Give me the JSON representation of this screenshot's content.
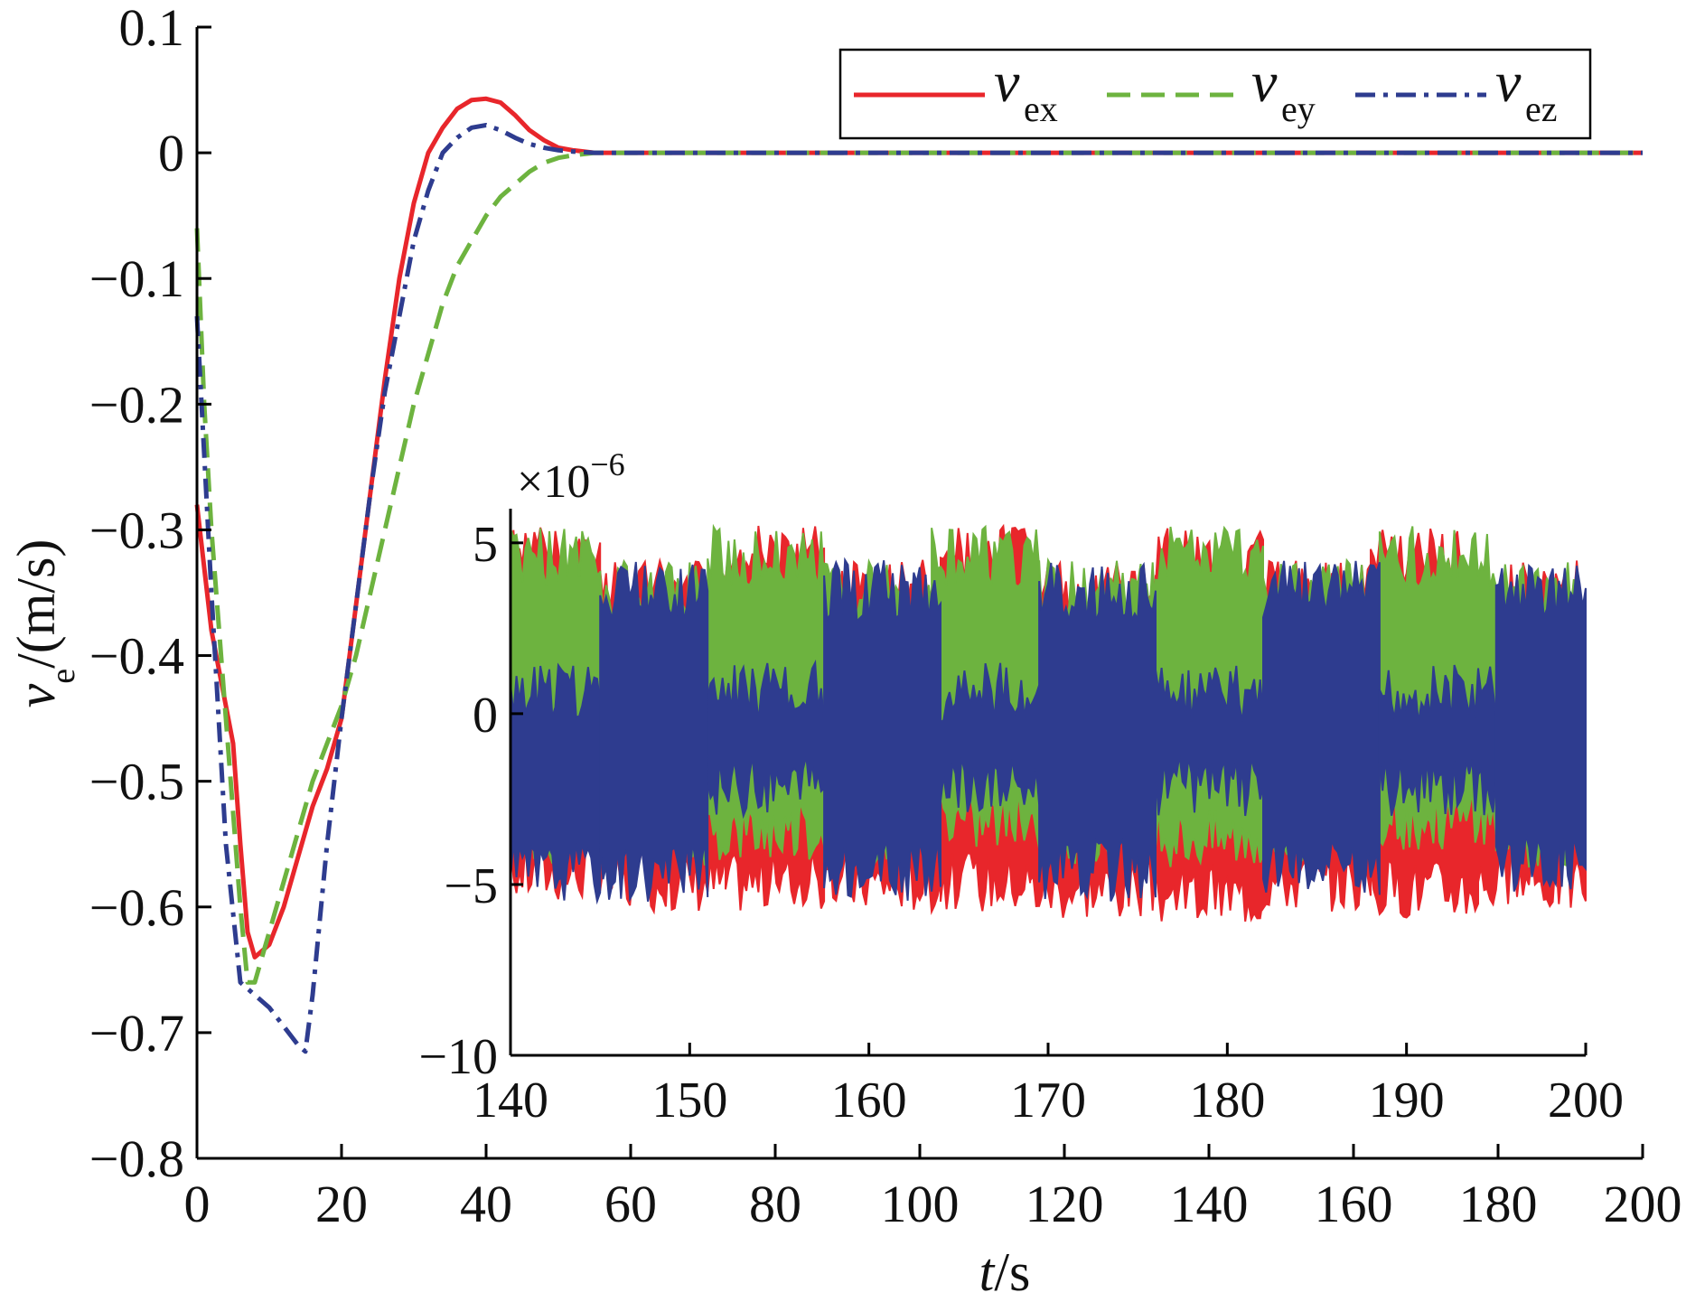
{
  "chart_data": [
    {
      "type": "line",
      "panel": "main",
      "xlabel_var": "t",
      "xlabel_unit": "/s",
      "ylabel_var": "v",
      "ylabel_sub": "e",
      "ylabel_unit": "/(m/s)",
      "xlim": [
        0,
        200
      ],
      "ylim": [
        -0.8,
        0.1
      ],
      "xticks": [
        0,
        20,
        40,
        60,
        80,
        100,
        120,
        140,
        160,
        180,
        200
      ],
      "yticks": [
        0.1,
        0,
        -0.1,
        -0.2,
        -0.3,
        -0.4,
        -0.5,
        -0.6,
        -0.7,
        -0.8
      ],
      "xtick_labels": [
        "0",
        "20",
        "40",
        "60",
        "80",
        "100",
        "120",
        "140",
        "160",
        "180",
        "200"
      ],
      "ytick_labels": [
        "0.1",
        "0",
        "−0.1",
        "−0.2",
        "−0.3",
        "−0.4",
        "−0.5",
        "−0.6",
        "−0.7",
        "−0.8"
      ],
      "legend_position": "top-right",
      "grid": false,
      "series": [
        {
          "name": "v",
          "sub": "ex",
          "color": "#e8262b",
          "style": "solid",
          "x": [
            0,
            2,
            4,
            5,
            6,
            7,
            8,
            10,
            12,
            14,
            16,
            18,
            20,
            22,
            24,
            26,
            28,
            30,
            32,
            34,
            36,
            38,
            40,
            42,
            44,
            46,
            48,
            50,
            52,
            55,
            58,
            60,
            80,
            100,
            120,
            140,
            160,
            180,
            200
          ],
          "y": [
            -0.28,
            -0.38,
            -0.44,
            -0.47,
            -0.55,
            -0.62,
            -0.64,
            -0.63,
            -0.6,
            -0.56,
            -0.52,
            -0.49,
            -0.45,
            -0.36,
            -0.27,
            -0.18,
            -0.1,
            -0.04,
            0.0,
            0.02,
            0.035,
            0.042,
            0.043,
            0.04,
            0.03,
            0.018,
            0.01,
            0.004,
            0.002,
            0.0,
            0.0,
            0.0,
            0.0,
            0.0,
            0.0,
            0.0,
            0.0,
            0.0,
            0.0
          ]
        },
        {
          "name": "v",
          "sub": "ey",
          "color": "#6db33f",
          "style": "dashed",
          "x": [
            0,
            1,
            2,
            4,
            6,
            7,
            8,
            10,
            12,
            14,
            16,
            18,
            20,
            22,
            24,
            26,
            28,
            30,
            32,
            34,
            36,
            38,
            40,
            42,
            44,
            46,
            48,
            50,
            52,
            55,
            58,
            60,
            80,
            100,
            120,
            140,
            160,
            180,
            200
          ],
          "y": [
            -0.06,
            -0.2,
            -0.3,
            -0.45,
            -0.6,
            -0.66,
            -0.66,
            -0.62,
            -0.58,
            -0.54,
            -0.5,
            -0.47,
            -0.44,
            -0.4,
            -0.35,
            -0.3,
            -0.25,
            -0.2,
            -0.16,
            -0.12,
            -0.09,
            -0.07,
            -0.05,
            -0.035,
            -0.025,
            -0.015,
            -0.008,
            -0.004,
            -0.002,
            0.0,
            0.0,
            0.0,
            0.0,
            0.0,
            0.0,
            0.0,
            0.0,
            0.0,
            0.0
          ]
        },
        {
          "name": "v",
          "sub": "ez",
          "color": "#2e3c8f",
          "style": "dashdot",
          "x": [
            0,
            2,
            4,
            6,
            8,
            10,
            12,
            14,
            15,
            16,
            18,
            20,
            22,
            24,
            26,
            28,
            30,
            32,
            34,
            36,
            38,
            40,
            42,
            44,
            46,
            48,
            50,
            52,
            55,
            58,
            60,
            80,
            100,
            120,
            140,
            160,
            180,
            200
          ],
          "y": [
            -0.13,
            -0.35,
            -0.55,
            -0.66,
            -0.67,
            -0.68,
            -0.695,
            -0.71,
            -0.715,
            -0.67,
            -0.55,
            -0.45,
            -0.36,
            -0.27,
            -0.19,
            -0.13,
            -0.07,
            -0.03,
            0.0,
            0.012,
            0.02,
            0.022,
            0.018,
            0.012,
            0.007,
            0.004,
            0.002,
            0.001,
            0.0,
            0.0,
            0.0,
            0.0,
            0.0,
            0.0,
            0.0,
            0.0,
            0.0,
            0.0
          ]
        }
      ]
    },
    {
      "type": "line",
      "panel": "inset",
      "xlim": [
        140,
        200
      ],
      "ylim": [
        -10,
        6
      ],
      "xticks": [
        140,
        150,
        160,
        170,
        180,
        190,
        200
      ],
      "yticks": [
        5,
        0,
        -5,
        -10
      ],
      "xtick_labels": [
        "140",
        "150",
        "160",
        "170",
        "180",
        "190",
        "200"
      ],
      "ytick_labels": [
        "5",
        "0",
        "−5",
        "−10"
      ],
      "scale_label": "×10",
      "scale_exponent": "−6",
      "grid": false,
      "series": [
        {
          "name": "v",
          "sub": "ex",
          "color": "#e8262b",
          "segments": [
            {
              "x": [
                140,
                145
              ],
              "upper": 5.5,
              "lower": -5.5
            },
            {
              "x": [
                145,
                152
              ],
              "upper": 4.5,
              "lower": -5.8
            },
            {
              "x": [
                152,
                157.5
              ],
              "upper": 5.5,
              "lower": -5.8
            },
            {
              "x": [
                157.5,
                164
              ],
              "upper": 4.5,
              "lower": -5.8
            },
            {
              "x": [
                164,
                169
              ],
              "upper": 5.5,
              "lower": -5.8
            },
            {
              "x": [
                169,
                176
              ],
              "upper": 4.5,
              "lower": -6.0
            },
            {
              "x": [
                176,
                182
              ],
              "upper": 5.5,
              "lower": -6.2
            },
            {
              "x": [
                182,
                188
              ],
              "upper": 4.5,
              "lower": -5.8
            },
            {
              "x": [
                188,
                194
              ],
              "upper": 5.5,
              "lower": -6.0
            },
            {
              "x": [
                194,
                200
              ],
              "upper": 4.5,
              "lower": -5.8
            }
          ]
        },
        {
          "name": "v",
          "sub": "ey",
          "color": "#6db33f",
          "segments": [
            {
              "x": [
                140,
                145
              ],
              "upper": 5.5,
              "lower": -4.5
            },
            {
              "x": [
                145,
                151
              ],
              "upper": 4.5,
              "lower": -4.5
            },
            {
              "x": [
                151,
                157.5
              ],
              "upper": 5.5,
              "lower": -4.3
            },
            {
              "x": [
                157.5,
                163.5
              ],
              "upper": 4.5,
              "lower": -4.5
            },
            {
              "x": [
                163.5,
                169.5
              ],
              "upper": 5.5,
              "lower": -4.0
            },
            {
              "x": [
                169.5,
                176
              ],
              "upper": 4.5,
              "lower": -4.5
            },
            {
              "x": [
                176,
                182
              ],
              "upper": 5.5,
              "lower": -4.5
            },
            {
              "x": [
                182,
                188.5
              ],
              "upper": 4.5,
              "lower": -4.5
            },
            {
              "x": [
                188.5,
                195
              ],
              "upper": 5.5,
              "lower": -4.0
            },
            {
              "x": [
                195,
                200
              ],
              "upper": 4.5,
              "lower": -4.5
            }
          ]
        },
        {
          "name": "v",
          "sub": "ez",
          "color": "#2e3c8f",
          "segments": [
            {
              "x": [
                140,
                145
              ],
              "upper": 1.5,
              "lower": -5.5
            },
            {
              "x": [
                145,
                151
              ],
              "upper": 4.5,
              "lower": -5.5
            },
            {
              "x": [
                151,
                157.5
              ],
              "upper": 1.5,
              "lower": -3.0
            },
            {
              "x": [
                157.5,
                164
              ],
              "upper": 4.5,
              "lower": -5.5
            },
            {
              "x": [
                164,
                169.5
              ],
              "upper": 1.5,
              "lower": -3.0
            },
            {
              "x": [
                169.5,
                176
              ],
              "upper": 4.5,
              "lower": -5.5
            },
            {
              "x": [
                176,
                182
              ],
              "upper": 1.5,
              "lower": -3.0
            },
            {
              "x": [
                182,
                188.5
              ],
              "upper": 4.5,
              "lower": -5.5
            },
            {
              "x": [
                188.5,
                195
              ],
              "upper": 1.5,
              "lower": -3.0
            },
            {
              "x": [
                195,
                200
              ],
              "upper": 4.5,
              "lower": -5.2
            }
          ]
        }
      ]
    }
  ]
}
